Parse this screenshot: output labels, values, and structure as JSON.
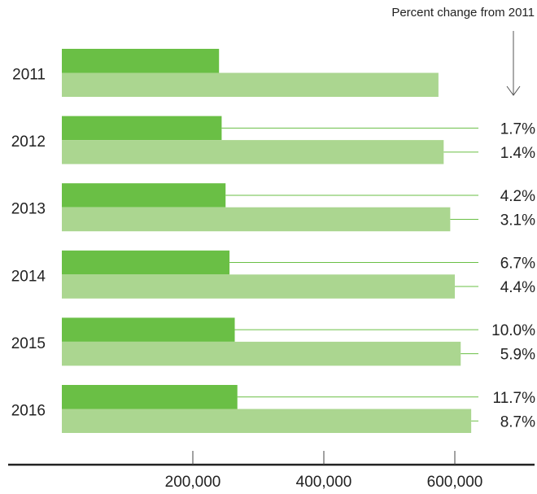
{
  "chart_data": {
    "type": "bar",
    "orientation": "horizontal",
    "annotation": "Percent change from 2011",
    "categories": [
      "2011",
      "2012",
      "2013",
      "2014",
      "2015",
      "2016"
    ],
    "series": [
      {
        "color": "#6abf45",
        "values": [
          240000,
          244000,
          250000,
          256000,
          264000,
          268000
        ],
        "pct_change_labels": [
          "",
          "1.7%",
          "4.2%",
          "6.7%",
          "10.0%",
          "11.7%"
        ]
      },
      {
        "color": "#abd690",
        "values": [
          575000,
          583000,
          593000,
          600000,
          609000,
          625000
        ],
        "pct_change_labels": [
          "",
          "1.4%",
          "3.1%",
          "4.4%",
          "5.9%",
          "8.7%"
        ]
      }
    ],
    "x_ticks": [
      200000,
      400000,
      600000
    ],
    "x_tick_labels": [
      "200,000",
      "400,000",
      "600,000"
    ],
    "xlim": [
      0,
      700000
    ],
    "grid": false
  }
}
